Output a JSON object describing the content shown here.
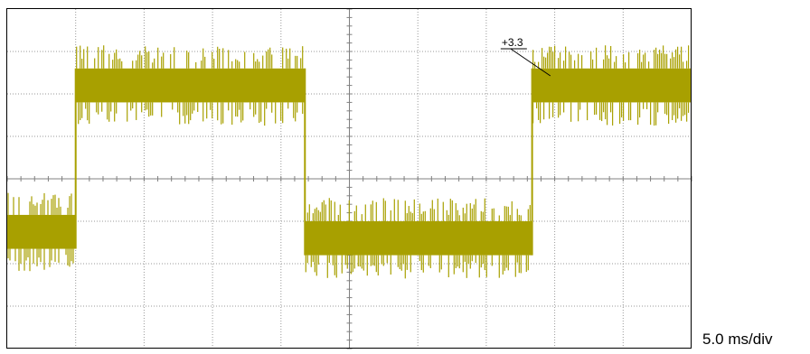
{
  "chart_data": {
    "type": "line",
    "title": "",
    "xlabel": "",
    "ylabel": "",
    "timebase": "5.0 ms/div",
    "grid": true,
    "divisions": {
      "x": 10,
      "y": 8
    },
    "trace_color": "#a8a000",
    "annotations": [
      {
        "text": "+3.3",
        "x_div": 7.25,
        "y_div": 1.0
      }
    ],
    "series": [
      {
        "levels": [
          {
            "x_start_div": 0.0,
            "x_end_div": 1.0,
            "y_center_div": 5.25,
            "y_band_div": 0.8,
            "y_spike_div": 0.55
          },
          {
            "x_start_div": 1.0,
            "x_end_div": 4.35,
            "y_center_div": 1.8,
            "y_band_div": 0.8,
            "y_spike_div": 0.55
          },
          {
            "x_start_div": 4.35,
            "x_end_div": 7.67,
            "y_center_div": 5.4,
            "y_band_div": 0.8,
            "y_spike_div": 0.55
          },
          {
            "x_start_div": 7.67,
            "x_end_div": 10.0,
            "y_center_div": 1.8,
            "y_band_div": 0.8,
            "y_spike_div": 0.55
          }
        ]
      }
    ]
  }
}
